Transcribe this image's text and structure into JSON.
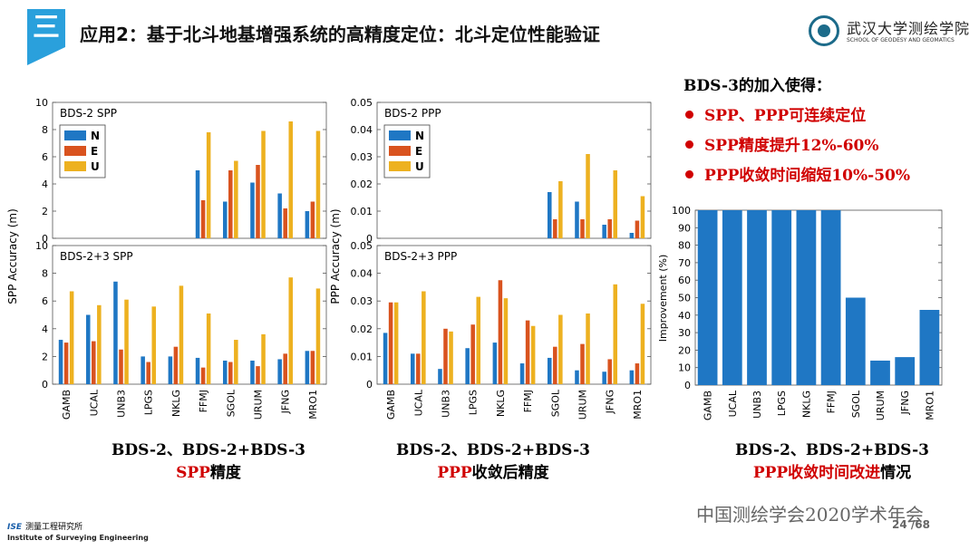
{
  "header": {
    "badge": "三",
    "title": "应用2：基于北斗地基增强系统的高精度定位：北斗定位性能验证"
  },
  "logo": {
    "name": "武汉大学测绘学院",
    "sub": "SCHOOL OF GEODESY AND GEOMATICS"
  },
  "colors": {
    "N": "#1f77c4",
    "E": "#d9531e",
    "U": "#edb120",
    "improvement": "#1f77c4"
  },
  "chart_data": [
    {
      "type": "bar",
      "title": "BDS-2 SPP",
      "ylabel": "SPP Accuracy (m)",
      "ylim": [
        0,
        10
      ],
      "yticks": [
        "0",
        "2",
        "4",
        "6",
        "8",
        "10"
      ],
      "categories": [
        "GAMB",
        "UCAL",
        "UNB3",
        "LPGS",
        "NKLG",
        "FFMJ",
        "SGOL",
        "URUM",
        "JFNG",
        "MRO1"
      ],
      "legend": [
        "N",
        "E",
        "U"
      ],
      "series": [
        {
          "name": "N",
          "values": [
            0,
            0,
            0,
            0,
            0,
            5.0,
            2.7,
            4.1,
            3.3,
            2.0
          ]
        },
        {
          "name": "E",
          "values": [
            0,
            0,
            0,
            0,
            0,
            2.8,
            5.0,
            5.4,
            2.2,
            2.7
          ]
        },
        {
          "name": "U",
          "values": [
            0,
            0,
            0,
            0,
            0,
            7.8,
            5.7,
            7.9,
            8.6,
            7.9
          ]
        }
      ]
    },
    {
      "type": "bar",
      "title": "BDS-2+3 SPP",
      "ylabel": "SPP Accuracy (m)",
      "ylim": [
        0,
        10
      ],
      "yticks": [
        "0",
        "2",
        "4",
        "6",
        "8",
        "10"
      ],
      "categories": [
        "GAMB",
        "UCAL",
        "UNB3",
        "LPGS",
        "NKLG",
        "FFMJ",
        "SGOL",
        "URUM",
        "JFNG",
        "MRO1"
      ],
      "series": [
        {
          "name": "N",
          "values": [
            3.2,
            5.0,
            7.4,
            2.0,
            2.0,
            1.9,
            1.7,
            1.7,
            1.8,
            2.4
          ]
        },
        {
          "name": "E",
          "values": [
            3.0,
            3.1,
            2.5,
            1.6,
            2.7,
            1.2,
            1.6,
            1.3,
            2.2,
            2.4
          ]
        },
        {
          "name": "U",
          "values": [
            6.7,
            5.7,
            6.1,
            5.6,
            7.1,
            5.1,
            3.2,
            3.6,
            7.7,
            6.9
          ]
        }
      ]
    },
    {
      "type": "bar",
      "title": "BDS-2 PPP",
      "ylabel": "PPP Accuracy (m)",
      "ylim": [
        0,
        0.05
      ],
      "yticks": [
        "0",
        "0.01",
        "0.02",
        "0.03",
        "0.04",
        "0.05"
      ],
      "categories": [
        "GAMB",
        "UCAL",
        "UNB3",
        "LPGS",
        "NKLG",
        "FFMJ",
        "SGOL",
        "URUM",
        "JFNG",
        "MRO1"
      ],
      "legend": [
        "N",
        "E",
        "U"
      ],
      "series": [
        {
          "name": "N",
          "values": [
            0,
            0,
            0,
            0,
            0,
            0,
            0.017,
            0.0135,
            0.005,
            0.002
          ]
        },
        {
          "name": "E",
          "values": [
            0,
            0,
            0,
            0,
            0,
            0,
            0.007,
            0.007,
            0.007,
            0.0065
          ]
        },
        {
          "name": "U",
          "values": [
            0,
            0,
            0,
            0,
            0,
            0,
            0.021,
            0.031,
            0.025,
            0.0155
          ]
        }
      ]
    },
    {
      "type": "bar",
      "title": "BDS-2+3 PPP",
      "ylabel": "PPP Accuracy (m)",
      "ylim": [
        0,
        0.05
      ],
      "yticks": [
        "0",
        "0.01",
        "0.02",
        "0.03",
        "0.04",
        "0.05"
      ],
      "categories": [
        "GAMB",
        "UCAL",
        "UNB3",
        "LPGS",
        "NKLG",
        "FFMJ",
        "SGOL",
        "URUM",
        "JFNG",
        "MRO1"
      ],
      "series": [
        {
          "name": "N",
          "values": [
            0.0185,
            0.011,
            0.0055,
            0.013,
            0.015,
            0.0075,
            0.0095,
            0.005,
            0.0045,
            0.005
          ]
        },
        {
          "name": "E",
          "values": [
            0.0295,
            0.011,
            0.02,
            0.0215,
            0.0375,
            0.023,
            0.0135,
            0.0145,
            0.009,
            0.0075
          ]
        },
        {
          "name": "U",
          "values": [
            0.0295,
            0.0335,
            0.019,
            0.0315,
            0.031,
            0.021,
            0.025,
            0.0255,
            0.036,
            0.029
          ]
        }
      ]
    },
    {
      "type": "bar",
      "ylabel": "Improvement (%)",
      "ylim": [
        0,
        100
      ],
      "yticks": [
        "0",
        "10",
        "20",
        "30",
        "40",
        "50",
        "60",
        "70",
        "80",
        "90",
        "100"
      ],
      "categories": [
        "GAMB",
        "UCAL",
        "UNB3",
        "LPGS",
        "NKLG",
        "FFMJ",
        "SGOL",
        "URUM",
        "JFNG",
        "MRO1"
      ],
      "values": [
        100,
        100,
        100,
        100,
        100,
        100,
        50,
        14,
        16,
        43
      ]
    }
  ],
  "captions": {
    "spp": {
      "line1": "BDS-2、BDS-2+BDS-3",
      "red": "SPP",
      "rest": "精度"
    },
    "ppp": {
      "line1": "BDS-2、BDS-2+BDS-3",
      "red": "PPP",
      "rest": "收敛后精度"
    },
    "imp": {
      "line1": "BDS-2、BDS-2+BDS-3",
      "red": "PPP收敛时间改进",
      "rest": "情况"
    }
  },
  "notes": {
    "head": "BDS-3的加入使得：",
    "items": [
      "SPP、PPP可连续定位",
      "SPP精度提升12%-60%",
      "PPP收敛时间缩短10%-50%"
    ]
  },
  "footer": {
    "ise": "ISE",
    "cn": "测量工程研究所",
    "en": "Institute of Surveying Engineering",
    "conference": "中国测绘学会2020学术年会",
    "page": "24",
    "total": "/68"
  }
}
